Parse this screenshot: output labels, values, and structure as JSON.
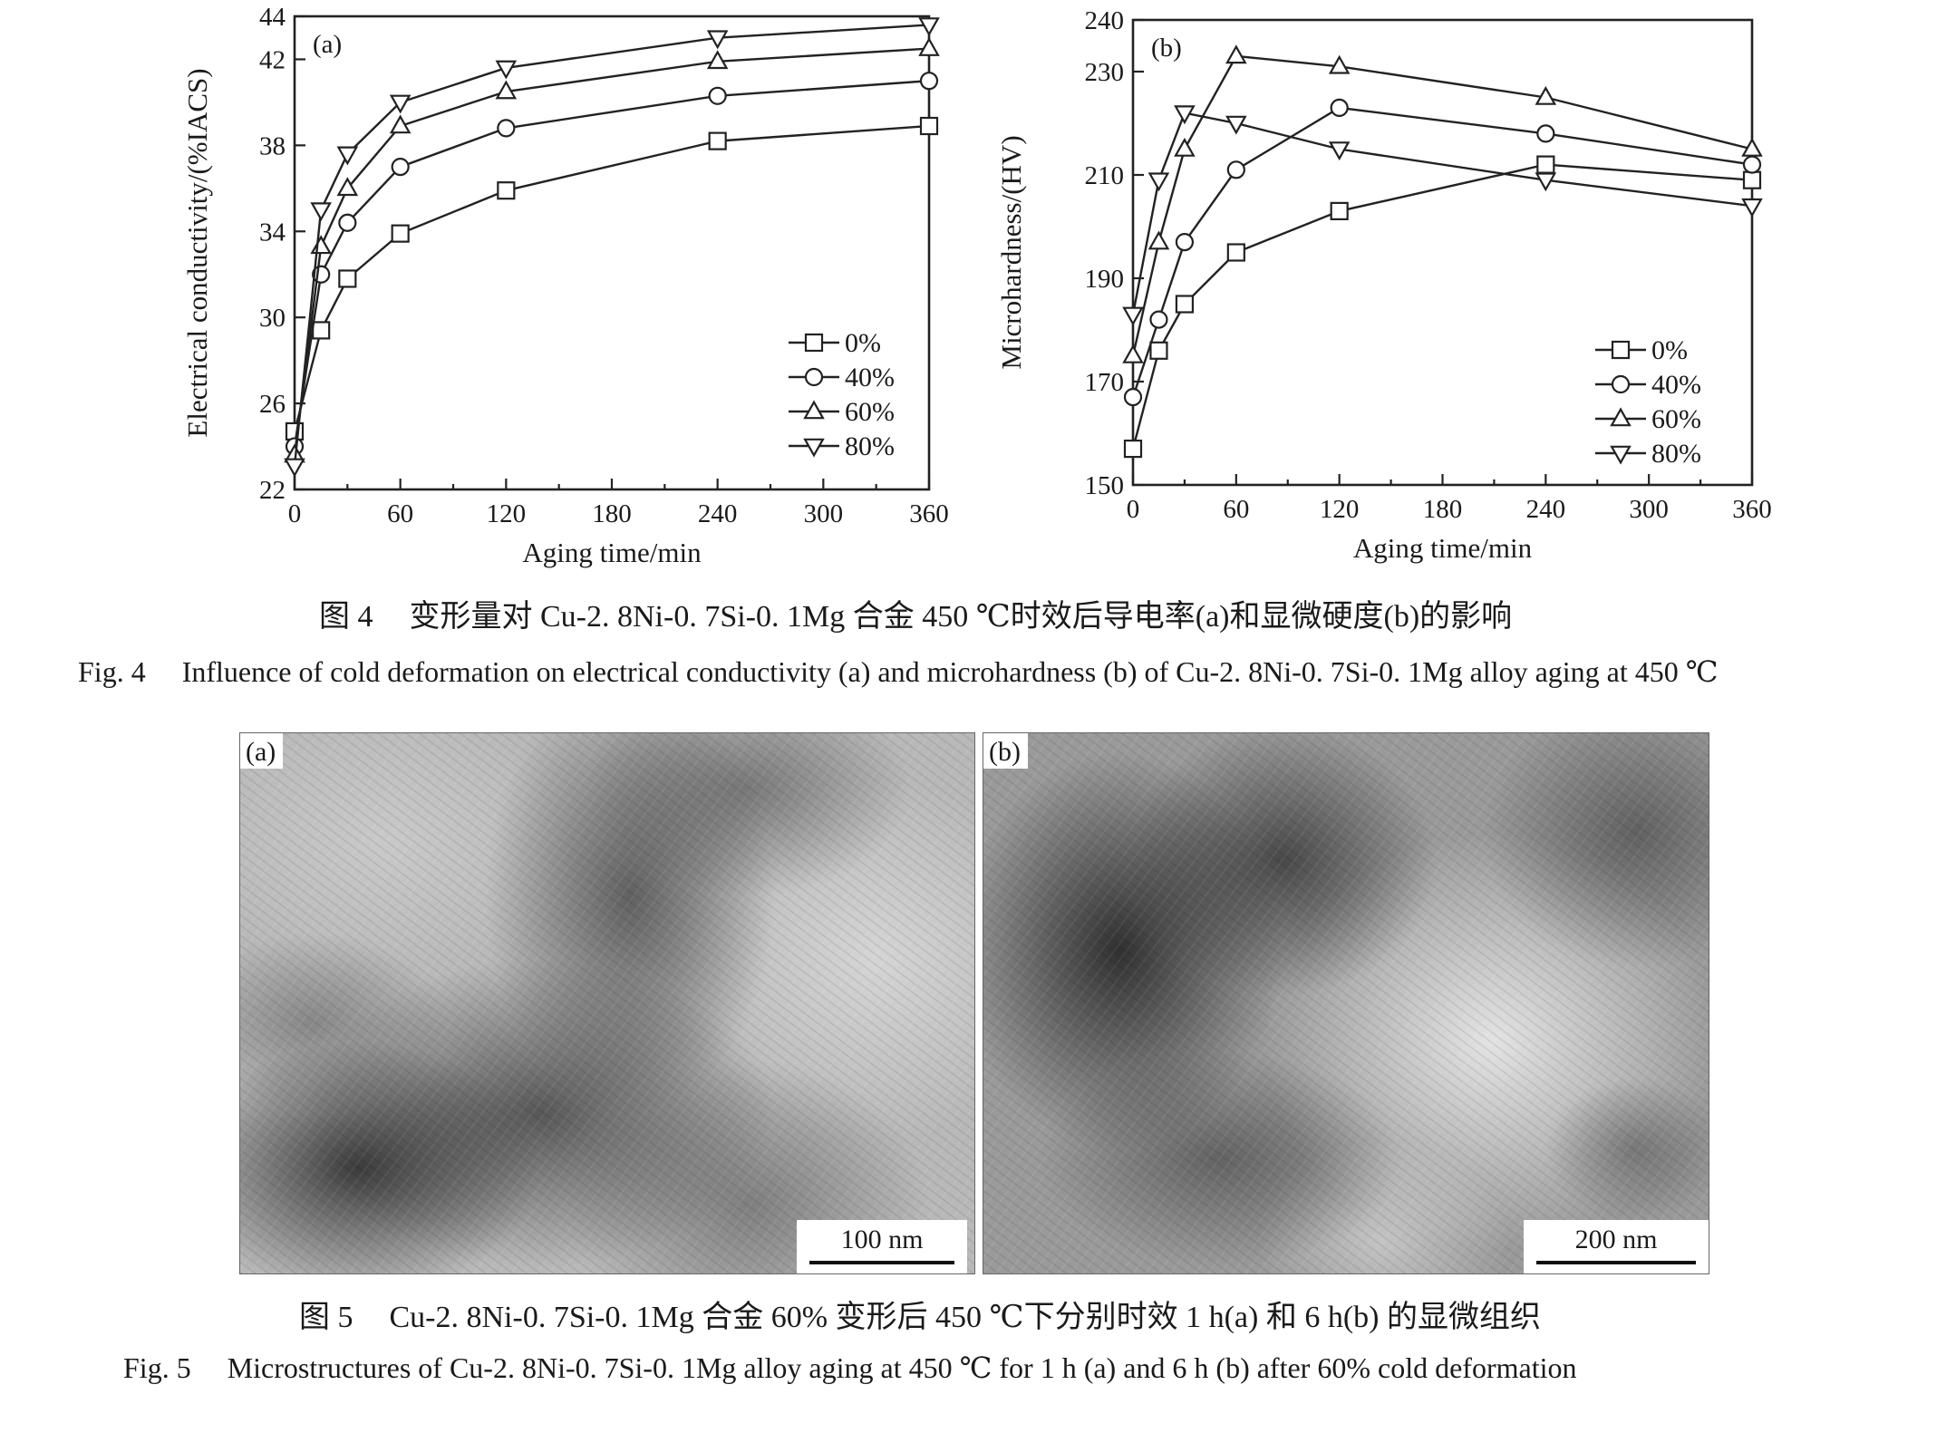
{
  "figure4": {
    "caption_cn": "变形量对 Cu-2. 8Ni-0. 7Si-0. 1Mg 合金 450 ℃时效后导电率(a)和显微硬度(b)的影响",
    "caption_cn_num": "图 4",
    "caption_en_num": "Fig. 4",
    "caption_en": "Influence of cold deformation on electrical conductivity (a) and microhardness (b) of Cu-2. 8Ni-0. 7Si-0. 1Mg alloy aging at 450 ℃"
  },
  "figure5": {
    "caption_cn_num": "图 5",
    "caption_cn": "Cu-2. 8Ni-0. 7Si-0. 1Mg 合金 60% 变形后 450 ℃下分别时效 1 h(a) 和 6 h(b) 的显微组织",
    "caption_en_num": "Fig. 5",
    "caption_en": "Microstructures of Cu-2. 8Ni-0. 7Si-0. 1Mg alloy aging at 450 ℃ for 1 h (a) and 6 h (b) after 60% cold deformation",
    "panel_a": {
      "tag": "(a)",
      "scale_label": "100 nm"
    },
    "panel_b": {
      "tag": "(b)",
      "scale_label": "200 nm"
    }
  },
  "chart_data": [
    {
      "type": "line",
      "panel": "(a)",
      "xlabel": "Aging time/min",
      "ylabel": "Electrical conductivity/(%IACS)",
      "xlim": [
        0,
        360
      ],
      "ylim": [
        22,
        44
      ],
      "xticks": [
        0,
        60,
        120,
        180,
        240,
        300,
        360
      ],
      "yticks": [
        22,
        26,
        30,
        34,
        38,
        42,
        44
      ],
      "legend_position": "bottom-right",
      "x": [
        0,
        15,
        30,
        60,
        120,
        240,
        360
      ],
      "series": [
        {
          "name": "0%",
          "marker": "square",
          "values": [
            24.7,
            29.4,
            31.8,
            33.9,
            35.9,
            38.2,
            38.9
          ]
        },
        {
          "name": "40%",
          "marker": "circle",
          "values": [
            24.0,
            32.0,
            34.4,
            37.0,
            38.8,
            40.3,
            41.0
          ]
        },
        {
          "name": "60%",
          "marker": "triangle-up",
          "values": [
            23.6,
            33.3,
            36.0,
            38.9,
            40.5,
            41.9,
            42.5
          ]
        },
        {
          "name": "80%",
          "marker": "triangle-down",
          "values": [
            23.1,
            35.0,
            37.6,
            40.0,
            41.6,
            43.0,
            43.6
          ]
        }
      ]
    },
    {
      "type": "line",
      "panel": "(b)",
      "xlabel": "Aging time/min",
      "ylabel": "Microhardness/(HV)",
      "xlim": [
        0,
        360
      ],
      "ylim": [
        150,
        240
      ],
      "xticks": [
        0,
        60,
        120,
        180,
        240,
        300,
        360
      ],
      "yticks": [
        150,
        170,
        190,
        210,
        230,
        240
      ],
      "legend_position": "bottom-left",
      "x": [
        0,
        15,
        30,
        60,
        120,
        240,
        360
      ],
      "series": [
        {
          "name": "0%",
          "marker": "square",
          "values": [
            157,
            176,
            185,
            195,
            203,
            212,
            209
          ]
        },
        {
          "name": "40%",
          "marker": "circle",
          "values": [
            167,
            182,
            197,
            211,
            223,
            218,
            212
          ]
        },
        {
          "name": "60%",
          "marker": "triangle-up",
          "values": [
            175,
            197,
            215,
            233,
            231,
            225,
            215
          ]
        },
        {
          "name": "80%",
          "marker": "triangle-down",
          "values": [
            183,
            209,
            222,
            220,
            215,
            209,
            204
          ]
        }
      ]
    }
  ]
}
